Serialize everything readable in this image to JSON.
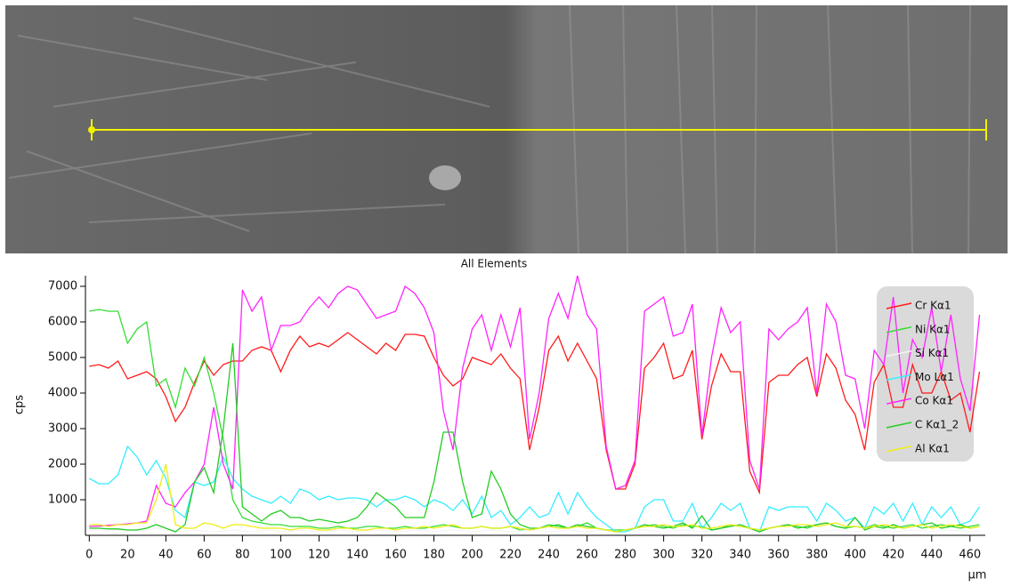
{
  "chart_data": {
    "type": "line",
    "title": "All Elements",
    "y_label": "cps",
    "x_label": "µm",
    "xlim": [
      -2,
      468
    ],
    "ylim": [
      0,
      7300
    ],
    "xticks": [
      0,
      20,
      40,
      60,
      80,
      100,
      120,
      140,
      160,
      180,
      200,
      220,
      240,
      260,
      280,
      300,
      320,
      340,
      360,
      380,
      400,
      420,
      440,
      460
    ],
    "yticks": [
      1000,
      2000,
      3000,
      4000,
      5000,
      6000,
      7000
    ],
    "x": [
      0,
      5,
      10,
      15,
      20,
      25,
      30,
      35,
      40,
      45,
      50,
      55,
      60,
      65,
      70,
      75,
      80,
      85,
      90,
      95,
      100,
      105,
      110,
      115,
      120,
      125,
      130,
      135,
      140,
      145,
      150,
      155,
      160,
      165,
      170,
      175,
      180,
      185,
      190,
      195,
      200,
      205,
      210,
      215,
      220,
      225,
      230,
      235,
      240,
      245,
      250,
      255,
      260,
      265,
      270,
      275,
      280,
      285,
      290,
      295,
      300,
      305,
      310,
      315,
      320,
      325,
      330,
      335,
      340,
      345,
      350,
      355,
      360,
      365,
      370,
      375,
      380,
      385,
      390,
      395,
      400,
      405,
      410,
      415,
      420,
      425,
      430,
      435,
      440,
      445,
      450,
      455,
      460,
      465
    ],
    "series": [
      {
        "name": "Cr Kα1",
        "color": "#ff1a1a",
        "values": [
          4750,
          4800,
          4700,
          4900,
          4400,
          4500,
          4600,
          4400,
          3900,
          3200,
          3600,
          4300,
          4900,
          4500,
          4800,
          4900,
          4900,
          5200,
          5300,
          5200,
          4600,
          5200,
          5600,
          5300,
          5400,
          5300,
          5500,
          5700,
          5500,
          5300,
          5100,
          5400,
          5200,
          5650,
          5650,
          5600,
          5000,
          4500,
          4200,
          4400,
          5000,
          4900,
          4800,
          5100,
          4700,
          4400,
          2400,
          3600,
          5200,
          5600,
          4900,
          5400,
          4900,
          4400,
          2400,
          1300,
          1300,
          2000,
          4700,
          5000,
          5400,
          4400,
          4500,
          5200,
          2700,
          4200,
          5100,
          4600,
          4600,
          1800,
          1200,
          4300,
          4500,
          4500,
          4800,
          5000,
          3900,
          5100,
          4700,
          3800,
          3400,
          2400,
          4300,
          4800,
          3600,
          3600,
          4800,
          4000,
          4000,
          4600,
          3800,
          4000,
          2900,
          4600
        ]
      },
      {
        "name": "Ni Kα1",
        "color": "#33dd33",
        "values": [
          6300,
          6350,
          6300,
          6300,
          5400,
          5800,
          6000,
          4200,
          4400,
          3600,
          4700,
          4200,
          5000,
          4000,
          2700,
          1000,
          500,
          400,
          350,
          300,
          300,
          250,
          250,
          250,
          200,
          200,
          250,
          200,
          200,
          250,
          250,
          200,
          200,
          250,
          200,
          200,
          250,
          300,
          250,
          200,
          200,
          250,
          200,
          200,
          250,
          150,
          150,
          200,
          300,
          250,
          200,
          250,
          350,
          200,
          150,
          150,
          150,
          200,
          250,
          300,
          250,
          200,
          300,
          250,
          250,
          150,
          200,
          300,
          250,
          200,
          150,
          200,
          250,
          300,
          250,
          200,
          300,
          350,
          250,
          200,
          250,
          200,
          300,
          250,
          200,
          250,
          300,
          200,
          250,
          300,
          250,
          200,
          250,
          300
        ]
      },
      {
        "name": "Si Kα1",
        "color": "#f4f4f4",
        "values": [
          150,
          150,
          120,
          150,
          120,
          120,
          150,
          200,
          150,
          100,
          120,
          150,
          120,
          100,
          120,
          150,
          120,
          100,
          120,
          150,
          100,
          120,
          150,
          120,
          100,
          120,
          150,
          120,
          100,
          120,
          150,
          120,
          100,
          120,
          150,
          120,
          100,
          120,
          150,
          120,
          100,
          120,
          150,
          120,
          100,
          120,
          150,
          120,
          100,
          120,
          150,
          120,
          100,
          120,
          150,
          120,
          100,
          120,
          150,
          120,
          100,
          120,
          150,
          120,
          100,
          120,
          150,
          120,
          100,
          120,
          150,
          120,
          100,
          120,
          150,
          120,
          100,
          120,
          150,
          120,
          100,
          120,
          150,
          120,
          100,
          120,
          150,
          120,
          100,
          120,
          150,
          120,
          100,
          120
        ]
      },
      {
        "name": "Mo Lα1",
        "color": "#33eeff",
        "values": [
          1600,
          1450,
          1450,
          1700,
          2500,
          2200,
          1700,
          2100,
          1600,
          700,
          500,
          1500,
          1400,
          1500,
          2200,
          1600,
          1300,
          1100,
          1000,
          900,
          1100,
          900,
          1300,
          1200,
          1000,
          1100,
          1000,
          1050,
          1050,
          1000,
          800,
          1000,
          1000,
          1100,
          1000,
          800,
          1000,
          900,
          700,
          1000,
          600,
          1100,
          500,
          700,
          300,
          500,
          800,
          500,
          600,
          1200,
          600,
          1200,
          800,
          500,
          300,
          100,
          100,
          200,
          800,
          1000,
          1000,
          400,
          400,
          900,
          200,
          500,
          900,
          700,
          900,
          200,
          100,
          800,
          700,
          800,
          800,
          800,
          400,
          900,
          700,
          400,
          500,
          200,
          800,
          600,
          900,
          400,
          900,
          300,
          800,
          500,
          800,
          300,
          400,
          800
        ]
      },
      {
        "name": "Co Kα1",
        "color": "#ff22ff",
        "values": [
          250,
          260,
          280,
          300,
          320,
          350,
          400,
          1400,
          900,
          800,
          1200,
          1500,
          2000,
          3600,
          2000,
          1300,
          6900,
          6300,
          6700,
          5200,
          5900,
          5900,
          6000,
          6400,
          6700,
          6400,
          6800,
          7000,
          6900,
          6500,
          6100,
          6200,
          6300,
          7000,
          6800,
          6400,
          5700,
          3500,
          2400,
          4700,
          5800,
          6200,
          5200,
          6200,
          5300,
          6400,
          2700,
          4000,
          6100,
          6800,
          6100,
          7300,
          6200,
          5800,
          2500,
          1300,
          1400,
          2100,
          6300,
          6500,
          6700,
          5600,
          5700,
          6500,
          2800,
          5000,
          6400,
          5700,
          6000,
          2100,
          1300,
          5800,
          5500,
          5800,
          6000,
          6400,
          4000,
          6500,
          6000,
          4500,
          4400,
          3000,
          5200,
          4800,
          6700,
          4000,
          5500,
          5000,
          6400,
          4600,
          6200,
          4400,
          3500,
          6200
        ]
      },
      {
        "name": "C Kα1_2",
        "color": "#22cc22",
        "values": [
          200,
          200,
          180,
          180,
          150,
          150,
          200,
          300,
          200,
          100,
          300,
          1500,
          1900,
          1200,
          3000,
          5400,
          800,
          600,
          400,
          600,
          700,
          500,
          500,
          400,
          450,
          400,
          350,
          400,
          500,
          800,
          1200,
          1000,
          800,
          500,
          500,
          500,
          1500,
          2900,
          2900,
          1500,
          500,
          600,
          1800,
          1300,
          600,
          300,
          200,
          200,
          250,
          300,
          200,
          300,
          250,
          200,
          150,
          100,
          150,
          200,
          300,
          250,
          200,
          250,
          350,
          200,
          550,
          150,
          200,
          250,
          300,
          200,
          100,
          200,
          250,
          300,
          200,
          250,
          300,
          350,
          250,
          200,
          500,
          150,
          250,
          200,
          300,
          200,
          250,
          300,
          350,
          200,
          250,
          300,
          200,
          250
        ]
      },
      {
        "name": "Al Kα1",
        "color": "#eeee11",
        "values": [
          300,
          300,
          250,
          300,
          300,
          350,
          350,
          1000,
          2000,
          300,
          200,
          200,
          350,
          300,
          200,
          300,
          300,
          250,
          200,
          200,
          200,
          150,
          200,
          200,
          150,
          150,
          200,
          200,
          150,
          150,
          200,
          200,
          150,
          200,
          200,
          250,
          200,
          250,
          300,
          200,
          200,
          250,
          200,
          200,
          250,
          200,
          150,
          200,
          250,
          200,
          200,
          250,
          200,
          200,
          150,
          100,
          150,
          200,
          250,
          250,
          300,
          250,
          250,
          300,
          200,
          200,
          250,
          300,
          250,
          200,
          150,
          200,
          250,
          250,
          300,
          300,
          250,
          300,
          350,
          250,
          250,
          200,
          250,
          300,
          250,
          200,
          250,
          300,
          200,
          250,
          300,
          250,
          200,
          250
        ]
      }
    ]
  }
}
